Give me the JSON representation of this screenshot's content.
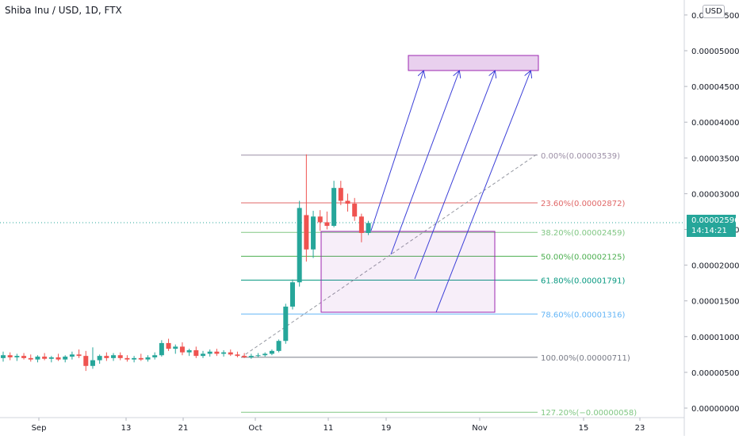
{
  "chart_data": {
    "type": "candlestick",
    "title": "Shiba Inu / USD, 1D, FTX",
    "currency": "USD",
    "x_ticks": [
      "Sep",
      "13",
      "21",
      "Oct",
      "11",
      "19",
      "Nov",
      "15",
      "23"
    ],
    "y_ticks": [
      "0.00000000",
      "0.00000500",
      "0.00001000",
      "0.00001500",
      "0.00002000",
      "0.00002500",
      "0.00003000",
      "0.00003500",
      "0.00004000",
      "0.00004500",
      "0.00005000",
      "0.00005500"
    ],
    "ylim": [
      0.0,
      5.6e-05
    ],
    "last_price": {
      "value": "0.00002596",
      "countdown": "14:14:21",
      "color": "#26a69a"
    },
    "colors": {
      "up": "#26a69a",
      "down": "#ef5350"
    },
    "candles": [
      {
        "d": 0,
        "o": 7e-06,
        "h": 7.9e-06,
        "l": 6.5e-06,
        "c": 7.4e-06
      },
      {
        "d": 1,
        "o": 7.4e-06,
        "h": 7.8e-06,
        "l": 6.7e-06,
        "c": 7.1e-06
      },
      {
        "d": 2,
        "o": 7.1e-06,
        "h": 7.6e-06,
        "l": 6.6e-06,
        "c": 7.3e-06
      },
      {
        "d": 3,
        "o": 7.3e-06,
        "h": 7.7e-06,
        "l": 6.8e-06,
        "c": 7e-06
      },
      {
        "d": 4,
        "o": 7e-06,
        "h": 7.5e-06,
        "l": 6.5e-06,
        "c": 6.8e-06
      },
      {
        "d": 5,
        "o": 6.8e-06,
        "h": 7.4e-06,
        "l": 6.4e-06,
        "c": 7.2e-06
      },
      {
        "d": 6,
        "o": 7.2e-06,
        "h": 7.7e-06,
        "l": 6.7e-06,
        "c": 6.9e-06
      },
      {
        "d": 7,
        "o": 6.9e-06,
        "h": 7.3e-06,
        "l": 6.4e-06,
        "c": 7.1e-06
      },
      {
        "d": 8,
        "o": 7.1e-06,
        "h": 7.6e-06,
        "l": 6.6e-06,
        "c": 6.8e-06
      },
      {
        "d": 9,
        "o": 6.8e-06,
        "h": 7.4e-06,
        "l": 6.4e-06,
        "c": 7.2e-06
      },
      {
        "d": 10,
        "o": 7.2e-06,
        "h": 7.9e-06,
        "l": 6.8e-06,
        "c": 7.5e-06
      },
      {
        "d": 11,
        "o": 7.5e-06,
        "h": 8.2e-06,
        "l": 7e-06,
        "c": 7.3e-06
      },
      {
        "d": 12,
        "o": 7.3e-06,
        "h": 8e-06,
        "l": 5.2e-06,
        "c": 5.9e-06
      },
      {
        "d": 13,
        "o": 5.9e-06,
        "h": 8.5e-06,
        "l": 5.5e-06,
        "c": 6.7e-06
      },
      {
        "d": 14,
        "o": 6.7e-06,
        "h": 7.5e-06,
        "l": 6.2e-06,
        "c": 7.3e-06
      },
      {
        "d": 15,
        "o": 7.3e-06,
        "h": 7.8e-06,
        "l": 6.6e-06,
        "c": 7e-06
      },
      {
        "d": 16,
        "o": 7e-06,
        "h": 7.7e-06,
        "l": 6.6e-06,
        "c": 7.4e-06
      },
      {
        "d": 17,
        "o": 7.4e-06,
        "h": 7.8e-06,
        "l": 6.7e-06,
        "c": 7e-06
      },
      {
        "d": 18,
        "o": 7e-06,
        "h": 7.4e-06,
        "l": 6.5e-06,
        "c": 6.8e-06
      },
      {
        "d": 19,
        "o": 6.8e-06,
        "h": 7.3e-06,
        "l": 6.4e-06,
        "c": 7e-06
      },
      {
        "d": 20,
        "o": 7e-06,
        "h": 7.6e-06,
        "l": 6.6e-06,
        "c": 6.8e-06
      },
      {
        "d": 21,
        "o": 6.8e-06,
        "h": 7.4e-06,
        "l": 6.5e-06,
        "c": 7.1e-06
      },
      {
        "d": 22,
        "o": 7.1e-06,
        "h": 7.8e-06,
        "l": 6.8e-06,
        "c": 7.4e-06
      },
      {
        "d": 23,
        "o": 7.4e-06,
        "h": 9.5e-06,
        "l": 7.2e-06,
        "c": 9.1e-06
      },
      {
        "d": 24,
        "o": 9.1e-06,
        "h": 9.7e-06,
        "l": 8e-06,
        "c": 8.3e-06
      },
      {
        "d": 25,
        "o": 8.3e-06,
        "h": 8.9e-06,
        "l": 7.6e-06,
        "c": 8.6e-06
      },
      {
        "d": 26,
        "o": 8.6e-06,
        "h": 9.2e-06,
        "l": 7.4e-06,
        "c": 7.8e-06
      },
      {
        "d": 27,
        "o": 7.8e-06,
        "h": 8.3e-06,
        "l": 7.3e-06,
        "c": 8.1e-06
      },
      {
        "d": 28,
        "o": 8.1e-06,
        "h": 8.6e-06,
        "l": 7e-06,
        "c": 7.3e-06
      },
      {
        "d": 29,
        "o": 7.3e-06,
        "h": 8e-06,
        "l": 7e-06,
        "c": 7.6e-06
      },
      {
        "d": 30,
        "o": 7.6e-06,
        "h": 8.2e-06,
        "l": 7.2e-06,
        "c": 7.9e-06
      },
      {
        "d": 31,
        "o": 7.9e-06,
        "h": 8.3e-06,
        "l": 7.3e-06,
        "c": 7.6e-06
      },
      {
        "d": 32,
        "o": 7.6e-06,
        "h": 8.1e-06,
        "l": 7.2e-06,
        "c": 7.8e-06
      },
      {
        "d": 33,
        "o": 7.8e-06,
        "h": 8.2e-06,
        "l": 7.3e-06,
        "c": 7.5e-06
      },
      {
        "d": 34,
        "o": 7.5e-06,
        "h": 7.9e-06,
        "l": 7.1e-06,
        "c": 7.3e-06
      },
      {
        "d": 35,
        "o": 7.3e-06,
        "h": 7.7e-06,
        "l": 7e-06,
        "c": 7.1e-06
      },
      {
        "d": 36,
        "o": 7.1e-06,
        "h": 7.6e-06,
        "l": 6.9e-06,
        "c": 7.3e-06
      },
      {
        "d": 37,
        "o": 7.3e-06,
        "h": 7.7e-06,
        "l": 7.1e-06,
        "c": 7.4e-06
      },
      {
        "d": 38,
        "o": 7.4e-06,
        "h": 7.8e-06,
        "l": 7.2e-06,
        "c": 7.6e-06
      },
      {
        "d": 39,
        "o": 7.6e-06,
        "h": 8.2e-06,
        "l": 7.4e-06,
        "c": 8e-06
      },
      {
        "d": 40,
        "o": 8e-06,
        "h": 9.6e-06,
        "l": 7.8e-06,
        "c": 9.4e-06
      },
      {
        "d": 41,
        "o": 9.4e-06,
        "h": 1.46e-05,
        "l": 9e-06,
        "c": 1.42e-05
      },
      {
        "d": 42,
        "o": 1.42e-05,
        "h": 1.8e-05,
        "l": 1.38e-05,
        "c": 1.76e-05
      },
      {
        "d": 43,
        "o": 1.76e-05,
        "h": 2.9e-05,
        "l": 1.7e-05,
        "c": 2.8e-05
      },
      {
        "d": 44,
        "o": 2.7e-05,
        "h": 3.55e-05,
        "l": 2.05e-05,
        "c": 2.22e-05
      },
      {
        "d": 45,
        "o": 2.22e-05,
        "h": 2.76e-05,
        "l": 2.1e-05,
        "c": 2.68e-05
      },
      {
        "d": 46,
        "o": 2.68e-05,
        "h": 2.77e-05,
        "l": 2.48e-05,
        "c": 2.6e-05
      },
      {
        "d": 47,
        "o": 2.6e-05,
        "h": 2.75e-05,
        "l": 2.5e-05,
        "c": 2.55e-05
      },
      {
        "d": 48,
        "o": 2.55e-05,
        "h": 3.18e-05,
        "l": 2.53e-05,
        "c": 3.08e-05
      },
      {
        "d": 49,
        "o": 3.08e-05,
        "h": 3.18e-05,
        "l": 2.84e-05,
        "c": 2.9e-05
      },
      {
        "d": 50,
        "o": 2.9e-05,
        "h": 3e-05,
        "l": 2.75e-05,
        "c": 2.86e-05
      },
      {
        "d": 51,
        "o": 2.86e-05,
        "h": 2.94e-05,
        "l": 2.62e-05,
        "c": 2.68e-05
      },
      {
        "d": 52,
        "o": 2.68e-05,
        "h": 2.72e-05,
        "l": 2.32e-05,
        "c": 2.45e-05
      },
      {
        "d": 53,
        "o": 2.45e-05,
        "h": 2.62e-05,
        "l": 2.42e-05,
        "c": 2.59e-05
      }
    ],
    "fib_levels": [
      {
        "label": "0.00%(0.00003539)",
        "price": 3.539e-05,
        "color": "#9c8fa6"
      },
      {
        "label": "23.60%(0.00002872)",
        "price": 2.872e-05,
        "color": "#e06767"
      },
      {
        "label": "38.20%(0.00002459)",
        "price": 2.459e-05,
        "color": "#81c784"
      },
      {
        "label": "50.00%(0.00002125)",
        "price": 2.125e-05,
        "color": "#4caf50"
      },
      {
        "label": "61.80%(0.00001791)",
        "price": 1.791e-05,
        "color": "#089981"
      },
      {
        "label": "78.60%(0.00001316)",
        "price": 1.316e-05,
        "color": "#64b5f6"
      },
      {
        "label": "100.00%(0.00000711)",
        "price": 7.11e-06,
        "color": "#787b86"
      },
      {
        "label": "127.20%(−0.00000058)",
        "price": -5.8e-07,
        "color": "#81c784"
      }
    ],
    "zone_color": "#9c27b0"
  }
}
